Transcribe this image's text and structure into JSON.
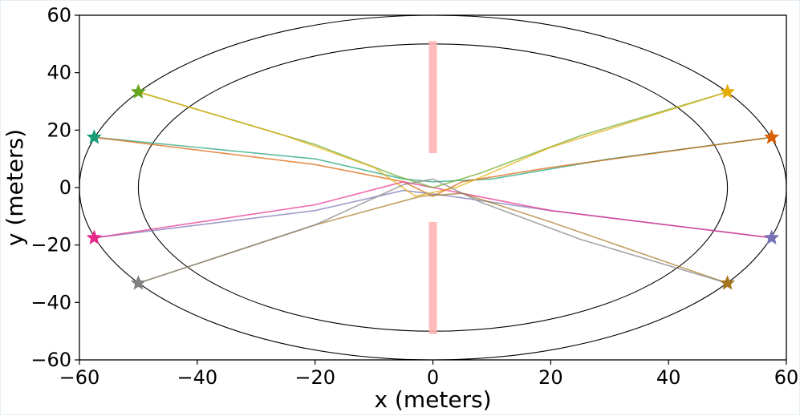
{
  "chart_data": {
    "type": "line",
    "title": "",
    "xlabel": "x (meters)",
    "ylabel": "y (meters)",
    "xlim": [
      -60,
      60
    ],
    "ylim": [
      -60,
      60
    ],
    "xticks": [
      -60,
      -40,
      -20,
      0,
      20,
      40,
      60
    ],
    "yticks": [
      -60,
      -40,
      -20,
      0,
      20,
      40,
      60
    ],
    "tick_labels_x": [
      "−60",
      "−40",
      "−20",
      "0",
      "20",
      "40",
      "60"
    ],
    "tick_labels_y": [
      "−60",
      "−40",
      "−20",
      "0",
      "20",
      "40",
      "60"
    ],
    "grid": false,
    "legend": "none",
    "ellipses": [
      {
        "name": "outer",
        "cx": 0,
        "cy": 0,
        "rx": 60,
        "ry": 60,
        "color": "#000000"
      },
      {
        "name": "inner",
        "cx": 0,
        "cy": 0,
        "rx": 50,
        "ry": 50,
        "color": "#000000"
      }
    ],
    "obstacles": [
      {
        "x": 0,
        "y": [
          12,
          51
        ],
        "color": "#ffb3b3"
      },
      {
        "x": 0,
        "y": [
          -51,
          -12
        ],
        "color": "#ffb3b3"
      }
    ],
    "series": [
      {
        "color": "#1b9e77",
        "start": [
          -57.5,
          17.5
        ],
        "path": [
          [
            -57.5,
            17.5
          ],
          [
            -20,
            10
          ],
          [
            -5,
            3
          ],
          [
            0,
            2
          ],
          [
            10,
            3
          ],
          [
            30,
            10
          ],
          [
            57.5,
            17.5
          ]
        ]
      },
      {
        "color": "#d95f02",
        "start": [
          57.5,
          17.5
        ],
        "path": [
          [
            57.5,
            17.5
          ],
          [
            20,
            7
          ],
          [
            5,
            2
          ],
          [
            0,
            -3
          ],
          [
            -5,
            2
          ],
          [
            -20,
            8
          ],
          [
            -57.5,
            17.5
          ]
        ]
      },
      {
        "color": "#7570b3",
        "start": [
          57.5,
          -17.5
        ],
        "path": [
          [
            57.5,
            -17.5
          ],
          [
            20,
            -8
          ],
          [
            3,
            -3
          ],
          [
            -5,
            -1
          ],
          [
            -20,
            -8
          ],
          [
            -57.5,
            -17.5
          ]
        ]
      },
      {
        "color": "#e7298a",
        "start": [
          -57.5,
          -17.5
        ],
        "path": [
          [
            -57.5,
            -17.5
          ],
          [
            -20,
            -6
          ],
          [
            -5,
            2
          ],
          [
            5,
            -2
          ],
          [
            20,
            -8
          ],
          [
            57.5,
            -17.5
          ]
        ]
      },
      {
        "color": "#66a61e",
        "start": [
          -50,
          33.3
        ],
        "path": [
          [
            -50,
            33.3
          ],
          [
            -20,
            15
          ],
          [
            -6,
            4
          ],
          [
            0,
            0
          ],
          [
            8,
            5
          ],
          [
            25,
            18
          ],
          [
            50,
            33.3
          ]
        ]
      },
      {
        "color": "#e6ab02",
        "start": [
          50,
          33.3
        ],
        "path": [
          [
            50,
            33.3
          ],
          [
            20,
            14
          ],
          [
            4,
            0
          ],
          [
            -3,
            -3
          ],
          [
            -10,
            7
          ],
          [
            -25,
            18
          ],
          [
            -50,
            33.3
          ]
        ]
      },
      {
        "color": "#a6761d",
        "start": [
          50,
          -33.3
        ],
        "path": [
          [
            50,
            -33.3
          ],
          [
            20,
            -12
          ],
          [
            5,
            -2
          ],
          [
            -2,
            -3
          ],
          [
            -20,
            -13
          ],
          [
            -50,
            -33.3
          ]
        ]
      },
      {
        "color": "#808080",
        "start": [
          -50,
          -33.3
        ],
        "path": [
          [
            -50,
            -33.3
          ],
          [
            -20,
            -13
          ],
          [
            -5,
            1
          ],
          [
            0,
            3
          ],
          [
            8,
            -5
          ],
          [
            25,
            -18
          ],
          [
            50,
            -33.3
          ]
        ]
      }
    ]
  }
}
